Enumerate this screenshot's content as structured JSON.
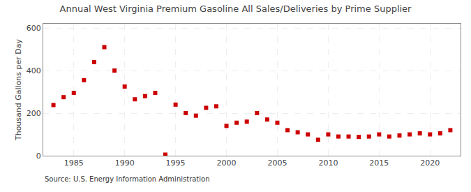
{
  "chart_data": {
    "type": "scatter",
    "title": "Annual West Virginia Premium Gasoline All Sales/Deliveries by Prime Supplier",
    "ylabel": "Thousand Gallons per Day",
    "annotations": [
      "Source: U.S. Energy Information Administration"
    ],
    "color": "#cc0000",
    "marker": "square",
    "grid": true,
    "xlim": [
      1982,
      2023
    ],
    "ylim": [
      0,
      620
    ],
    "xticks": [
      1985,
      1990,
      1995,
      2000,
      2005,
      2010,
      2015,
      2020
    ],
    "yticks": [
      0,
      200,
      400,
      600
    ],
    "x": [
      1983,
      1984,
      1985,
      1986,
      1987,
      1988,
      1989,
      1990,
      1991,
      1992,
      1993,
      1994,
      1995,
      1996,
      1997,
      1998,
      1999,
      2000,
      2001,
      2002,
      2003,
      2004,
      2005,
      2006,
      2007,
      2008,
      2009,
      2010,
      2011,
      2012,
      2013,
      2014,
      2015,
      2016,
      2017,
      2018,
      2019,
      2020,
      2021,
      2022
    ],
    "values": [
      238,
      275,
      295,
      355,
      440,
      510,
      400,
      325,
      265,
      280,
      295,
      5,
      240,
      200,
      188,
      225,
      232,
      140,
      155,
      160,
      200,
      170,
      155,
      120,
      110,
      100,
      75,
      100,
      90,
      90,
      88,
      90,
      100,
      90,
      95,
      100,
      105,
      100,
      105,
      120
    ]
  }
}
